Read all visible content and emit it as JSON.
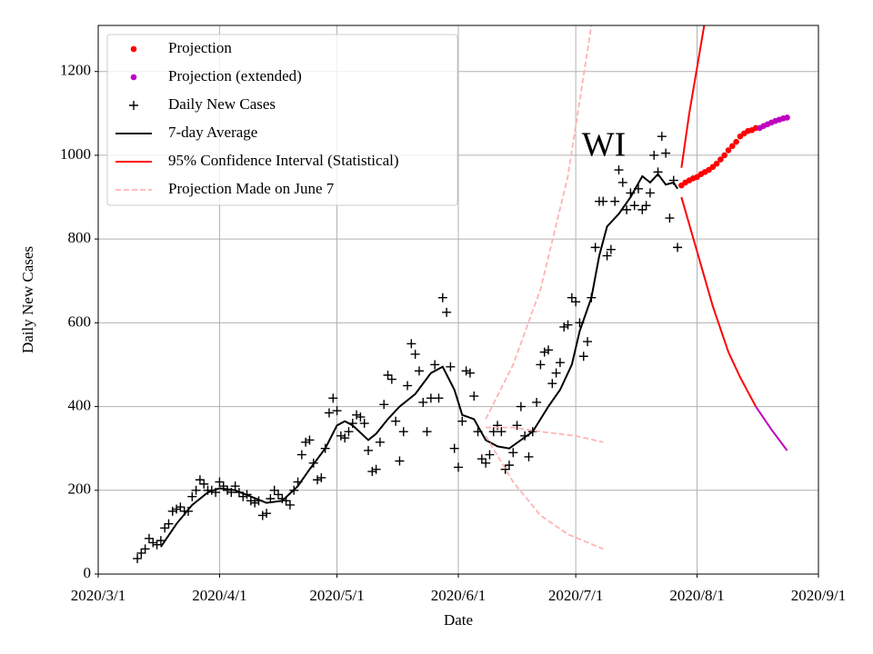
{
  "chart_data": {
    "type": "line",
    "annotation": "WI",
    "xlabel": "Date",
    "ylabel": "Daily New Cases",
    "xlim": [
      "2020-03-01",
      "2020-09-01"
    ],
    "xticks": [
      {
        "value": "2020-03-01",
        "label": "2020/3/1"
      },
      {
        "value": "2020-04-01",
        "label": "2020/4/1"
      },
      {
        "value": "2020-05-01",
        "label": "2020/5/1"
      },
      {
        "value": "2020-06-01",
        "label": "2020/6/1"
      },
      {
        "value": "2020-07-01",
        "label": "2020/7/1"
      },
      {
        "value": "2020-08-01",
        "label": "2020/8/1"
      },
      {
        "value": "2020-09-01",
        "label": "2020/9/1"
      }
    ],
    "ylim": [
      0,
      1310
    ],
    "yticks": [
      0,
      200,
      400,
      600,
      800,
      1000,
      1200
    ],
    "grid": true,
    "legend": "upper left",
    "series": [
      {
        "name": "Projection",
        "color": "#ff0000",
        "style": "dot",
        "x": [
          "2020-07-28",
          "2020-07-29",
          "2020-07-30",
          "2020-07-31",
          "2020-08-01",
          "2020-08-02",
          "2020-08-03",
          "2020-08-04",
          "2020-08-05",
          "2020-08-06",
          "2020-08-07",
          "2020-08-08",
          "2020-08-09",
          "2020-08-10",
          "2020-08-11",
          "2020-08-12",
          "2020-08-13",
          "2020-08-14",
          "2020-08-15",
          "2020-08-16"
        ],
        "values": [
          928,
          935,
          940,
          945,
          948,
          955,
          960,
          965,
          972,
          980,
          990,
          1000,
          1012,
          1022,
          1032,
          1045,
          1052,
          1058,
          1060,
          1065
        ]
      },
      {
        "name": "Projection (extended)",
        "color": "#bf00bf",
        "style": "dot",
        "x": [
          "2020-08-17",
          "2020-08-18",
          "2020-08-19",
          "2020-08-20",
          "2020-08-21",
          "2020-08-22",
          "2020-08-23",
          "2020-08-24"
        ],
        "values": [
          1065,
          1070,
          1074,
          1078,
          1082,
          1085,
          1088,
          1090
        ]
      },
      {
        "name": "Daily New Cases",
        "color": "#000000",
        "style": "plus",
        "x": [
          "2020-03-11",
          "2020-03-12",
          "2020-03-13",
          "2020-03-14",
          "2020-03-15",
          "2020-03-16",
          "2020-03-17",
          "2020-03-18",
          "2020-03-19",
          "2020-03-20",
          "2020-03-21",
          "2020-03-22",
          "2020-03-23",
          "2020-03-24",
          "2020-03-25",
          "2020-03-26",
          "2020-03-27",
          "2020-03-28",
          "2020-03-29",
          "2020-03-30",
          "2020-03-31",
          "2020-04-01",
          "2020-04-02",
          "2020-04-03",
          "2020-04-04",
          "2020-04-05",
          "2020-04-06",
          "2020-04-07",
          "2020-04-08",
          "2020-04-09",
          "2020-04-10",
          "2020-04-11",
          "2020-04-12",
          "2020-04-13",
          "2020-04-14",
          "2020-04-15",
          "2020-04-16",
          "2020-04-17",
          "2020-04-18",
          "2020-04-19",
          "2020-04-20",
          "2020-04-21",
          "2020-04-22",
          "2020-04-23",
          "2020-04-24",
          "2020-04-25",
          "2020-04-26",
          "2020-04-27",
          "2020-04-28",
          "2020-04-29",
          "2020-04-30",
          "2020-05-01",
          "2020-05-02",
          "2020-05-03",
          "2020-05-04",
          "2020-05-05",
          "2020-05-06",
          "2020-05-07",
          "2020-05-08",
          "2020-05-09",
          "2020-05-10",
          "2020-05-11",
          "2020-05-12",
          "2020-05-13",
          "2020-05-14",
          "2020-05-15",
          "2020-05-16",
          "2020-05-17",
          "2020-05-18",
          "2020-05-19",
          "2020-05-20",
          "2020-05-21",
          "2020-05-22",
          "2020-05-23",
          "2020-05-24",
          "2020-05-25",
          "2020-05-26",
          "2020-05-27",
          "2020-05-28",
          "2020-05-29",
          "2020-05-30",
          "2020-05-31",
          "2020-06-01",
          "2020-06-02",
          "2020-06-03",
          "2020-06-04",
          "2020-06-05",
          "2020-06-06",
          "2020-06-07",
          "2020-06-08",
          "2020-06-09",
          "2020-06-10",
          "2020-06-11",
          "2020-06-12",
          "2020-06-13",
          "2020-06-14",
          "2020-06-15",
          "2020-06-16",
          "2020-06-17",
          "2020-06-18",
          "2020-06-19",
          "2020-06-20",
          "2020-06-21",
          "2020-06-22",
          "2020-06-23",
          "2020-06-24",
          "2020-06-25",
          "2020-06-26",
          "2020-06-27",
          "2020-06-28",
          "2020-06-29",
          "2020-06-30",
          "2020-07-01",
          "2020-07-02",
          "2020-07-03",
          "2020-07-04",
          "2020-07-05",
          "2020-07-06",
          "2020-07-07",
          "2020-07-08",
          "2020-07-09",
          "2020-07-10",
          "2020-07-11",
          "2020-07-12",
          "2020-07-13",
          "2020-07-14",
          "2020-07-15",
          "2020-07-16",
          "2020-07-17",
          "2020-07-18",
          "2020-07-19",
          "2020-07-20",
          "2020-07-21",
          "2020-07-22",
          "2020-07-23",
          "2020-07-24",
          "2020-07-25",
          "2020-07-26",
          "2020-07-27"
        ],
        "values": [
          37,
          50,
          60,
          85,
          75,
          70,
          80,
          110,
          120,
          150,
          155,
          160,
          150,
          150,
          185,
          200,
          225,
          215,
          200,
          200,
          195,
          220,
          210,
          200,
          195,
          210,
          195,
          185,
          190,
          175,
          170,
          175,
          140,
          145,
          180,
          200,
          190,
          180,
          175,
          165,
          200,
          220,
          285,
          315,
          320,
          265,
          225,
          230,
          300,
          385,
          420,
          390,
          330,
          325,
          340,
          360,
          380,
          375,
          360,
          295,
          245,
          250,
          315,
          405,
          475,
          465,
          365,
          270,
          340,
          450,
          550,
          525,
          485,
          410,
          340,
          420,
          500,
          420,
          660,
          625,
          495,
          300,
          255,
          365,
          485,
          480,
          425,
          340,
          275,
          265,
          285,
          340,
          355,
          340,
          250,
          260,
          290,
          355,
          400,
          330,
          280,
          340,
          410,
          500,
          530,
          535,
          455,
          480,
          505,
          590,
          595,
          660,
          650,
          600,
          520,
          555,
          660,
          780,
          890,
          890,
          760,
          775,
          890,
          965,
          935,
          870,
          910,
          880,
          920,
          870,
          880,
          910,
          1000,
          960,
          1045,
          1005,
          850,
          940,
          780
        ]
      },
      {
        "name": "7-day Average",
        "color": "#000000",
        "style": "line",
        "x": [
          "2020-03-17",
          "2020-03-21",
          "2020-03-25",
          "2020-03-29",
          "2020-04-01",
          "2020-04-05",
          "2020-04-09",
          "2020-04-13",
          "2020-04-17",
          "2020-04-21",
          "2020-04-24",
          "2020-04-28",
          "2020-05-01",
          "2020-05-03",
          "2020-05-05",
          "2020-05-09",
          "2020-05-11",
          "2020-05-14",
          "2020-05-17",
          "2020-05-21",
          "2020-05-25",
          "2020-05-28",
          "2020-05-31",
          "2020-06-02",
          "2020-06-05",
          "2020-06-08",
          "2020-06-11",
          "2020-06-14",
          "2020-06-17",
          "2020-06-20",
          "2020-06-24",
          "2020-06-27",
          "2020-06-30",
          "2020-07-02",
          "2020-07-05",
          "2020-07-07",
          "2020-07-09",
          "2020-07-12",
          "2020-07-15",
          "2020-07-18",
          "2020-07-20",
          "2020-07-22",
          "2020-07-24",
          "2020-07-26",
          "2020-07-27"
        ],
        "values": [
          65,
          120,
          165,
          195,
          205,
          200,
          185,
          170,
          175,
          210,
          250,
          300,
          355,
          365,
          355,
          320,
          335,
          370,
          400,
          430,
          480,
          495,
          440,
          380,
          370,
          320,
          305,
          300,
          320,
          340,
          400,
          440,
          500,
          580,
          660,
          760,
          830,
          860,
          900,
          950,
          935,
          955,
          930,
          935,
          920
        ]
      },
      {
        "name": "95% Confidence Interval (Statistical)",
        "color": "#ff0000",
        "style": "line",
        "x": [
          "2020-07-28",
          "2020-07-30",
          "2020-08-01",
          "2020-08-03"
        ],
        "values": [
          970,
          1100,
          1210,
          1320
        ]
      },
      {
        "name": "Projection Made on June 7",
        "color": "#ffb3b3",
        "style": "dashed",
        "x": [
          "2020-06-08",
          "2020-06-15",
          "2020-06-22",
          "2020-07-01",
          "2020-07-08"
        ],
        "values": [
          350,
          350,
          340,
          330,
          315
        ]
      },
      {
        "color": "#ff0000",
        "style": "line",
        "x": [
          "2020-07-28",
          "2020-08-01",
          "2020-08-05",
          "2020-08-09",
          "2020-08-12",
          "2020-08-16"
        ],
        "values": [
          900,
          770,
          640,
          530,
          470,
          400
        ]
      },
      {
        "color": "#bf00bf",
        "style": "line",
        "x": [
          "2020-08-16",
          "2020-08-20",
          "2020-08-24"
        ],
        "values": [
          400,
          345,
          295
        ]
      },
      {
        "color": "#ffb3b3",
        "style": "dashed",
        "x": [
          "2020-06-08",
          "2020-06-15",
          "2020-06-22",
          "2020-06-29",
          "2020-07-05"
        ],
        "values": [
          370,
          500,
          680,
          950,
          1310
        ]
      },
      {
        "color": "#ffb3b3",
        "style": "dashed",
        "x": [
          "2020-06-08",
          "2020-06-15",
          "2020-06-22",
          "2020-06-29",
          "2020-07-08"
        ],
        "values": [
          330,
          220,
          140,
          95,
          60
        ]
      }
    ]
  }
}
